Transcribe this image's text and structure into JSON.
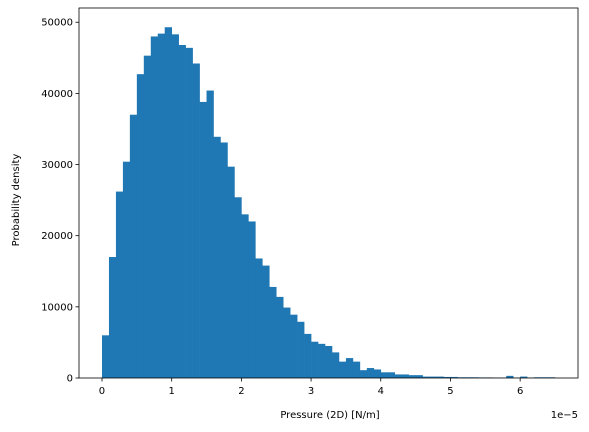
{
  "chart_data": {
    "type": "bar",
    "title": "",
    "xlabel": "Pressure (2D) [N/m]",
    "ylabel": "Probability density",
    "x_offset_text": "1e−5",
    "xlim": [
      -0.33,
      6.83
    ],
    "ylim": [
      0,
      52000
    ],
    "x_ticks": [
      0,
      1,
      2,
      3,
      4,
      5,
      6
    ],
    "x_tick_labels": [
      "0",
      "1",
      "2",
      "3",
      "4",
      "5",
      "6"
    ],
    "y_ticks": [
      0,
      10000,
      20000,
      30000,
      40000,
      50000
    ],
    "y_tick_labels": [
      "0",
      "10000",
      "20000",
      "30000",
      "40000",
      "50000"
    ],
    "grid": false,
    "bar_color": "#1f77b4",
    "bin_start": 0.0,
    "bin_width": 0.1,
    "values": [
      6000,
      17000,
      26200,
      30400,
      37000,
      42700,
      45300,
      48000,
      48400,
      49300,
      48300,
      46800,
      46400,
      44200,
      38800,
      40400,
      33900,
      33100,
      29700,
      25400,
      23000,
      22000,
      16800,
      15800,
      12800,
      11400,
      9900,
      8900,
      7900,
      6200,
      5100,
      4800,
      4500,
      3600,
      2300,
      2800,
      2300,
      1100,
      1400,
      1200,
      800,
      800,
      500,
      500,
      400,
      400,
      200,
      200,
      200,
      150,
      150,
      100,
      100,
      100,
      80,
      80,
      50,
      50,
      300,
      50,
      200,
      50,
      100,
      100,
      100
    ]
  }
}
